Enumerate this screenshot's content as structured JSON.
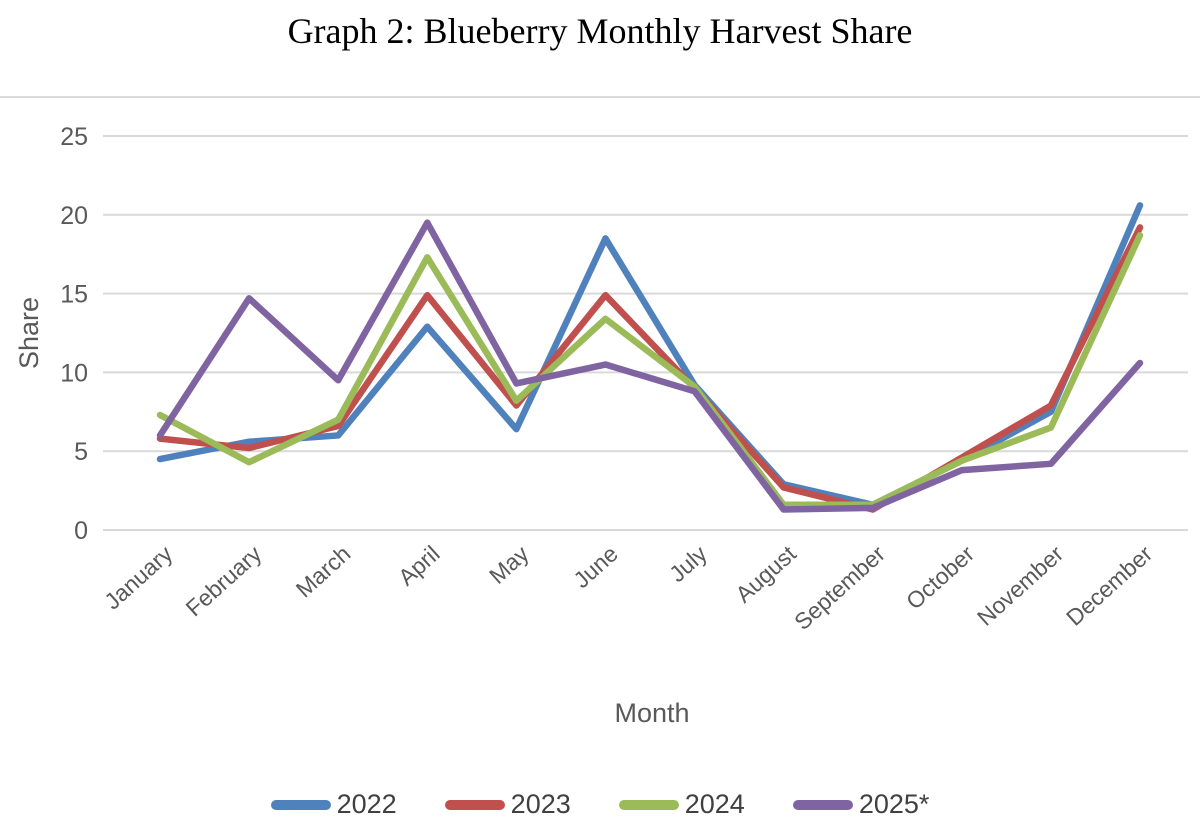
{
  "title": "Graph 2: Blueberry Monthly Harvest Share",
  "chart_data": {
    "type": "line",
    "title": "Graph 2: Blueberry Monthly Harvest Share",
    "xlabel": "Month",
    "ylabel": "Share",
    "ylim": [
      0,
      25
    ],
    "yticks": [
      0,
      5,
      10,
      15,
      20,
      25
    ],
    "grid": true,
    "legend_position": "bottom",
    "categories": [
      "January",
      "February",
      "March",
      "April",
      "May",
      "June",
      "July",
      "August",
      "September",
      "October",
      "November",
      "December"
    ],
    "series": [
      {
        "name": "2022",
        "color": "#4F81BD",
        "values": [
          4.5,
          5.6,
          6.0,
          12.9,
          6.4,
          18.5,
          9.2,
          2.9,
          1.6,
          4.4,
          7.5,
          20.6
        ]
      },
      {
        "name": "2023",
        "color": "#C0504D",
        "values": [
          5.8,
          5.2,
          6.6,
          14.9,
          7.9,
          14.9,
          9.0,
          2.7,
          1.3,
          4.6,
          7.9,
          19.2
        ]
      },
      {
        "name": "2024",
        "color": "#9BBB59",
        "values": [
          7.3,
          4.3,
          7.0,
          17.3,
          8.2,
          13.4,
          9.1,
          1.6,
          1.6,
          4.4,
          6.5,
          18.7
        ]
      },
      {
        "name": "2025*",
        "color": "#8064A2",
        "values": [
          6.0,
          14.7,
          9.5,
          19.5,
          9.3,
          10.5,
          8.8,
          1.3,
          1.4,
          3.8,
          4.2,
          10.6
        ]
      }
    ]
  },
  "colors": {
    "grid": "#D9D9D9",
    "axis_text": "#595959",
    "legend_text": "#404040",
    "title_text": "#000000"
  }
}
